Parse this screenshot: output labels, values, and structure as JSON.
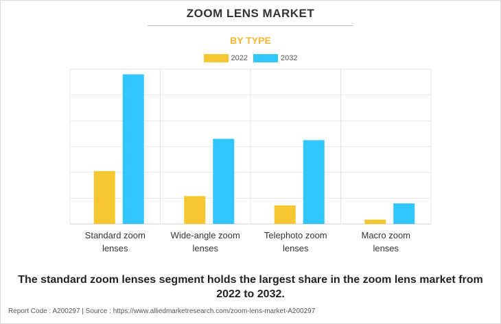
{
  "header": {
    "title": "ZOOM LENS MARKET",
    "subtitle": "BY TYPE"
  },
  "legend": [
    {
      "label": "2022",
      "color": "#f5c832"
    },
    {
      "label": "2032",
      "color": "#33c6fc"
    }
  ],
  "chart_data": {
    "type": "bar",
    "title": "ZOOM LENS MARKET",
    "subtitle": "BY TYPE",
    "categories": [
      "Standard zoom lenses",
      "Wide-angle zoom lenses",
      "Telephoto zoom lenses",
      "Macro zoom lenses"
    ],
    "category_lines": [
      [
        "Standard zoom",
        "lenses"
      ],
      [
        "Wide-angle zoom",
        "lenses"
      ],
      [
        "Telephoto zoom",
        "lenses"
      ],
      [
        "Macro zoom",
        "lenses"
      ]
    ],
    "series": [
      {
        "name": "2022",
        "color": "#f5c832",
        "values": [
          2.05,
          1.08,
          0.72,
          0.17
        ]
      },
      {
        "name": "2032",
        "color": "#33c6fc",
        "values": [
          5.8,
          3.3,
          3.25,
          0.8
        ]
      }
    ],
    "xlabel": "",
    "ylabel": "",
    "ylim": [
      0,
      6
    ],
    "grid": true,
    "legend_position": "top-center",
    "y_tick_labels_shown": false
  },
  "footer": {
    "caption": "The standard zoom lenses segment holds the largest share in the zoom lens market from 2022 to 2032.",
    "source": "Report Code : A200297  |  Source : https://www.alliedmarketresearch.com/zoom-lens-market-A200297"
  }
}
